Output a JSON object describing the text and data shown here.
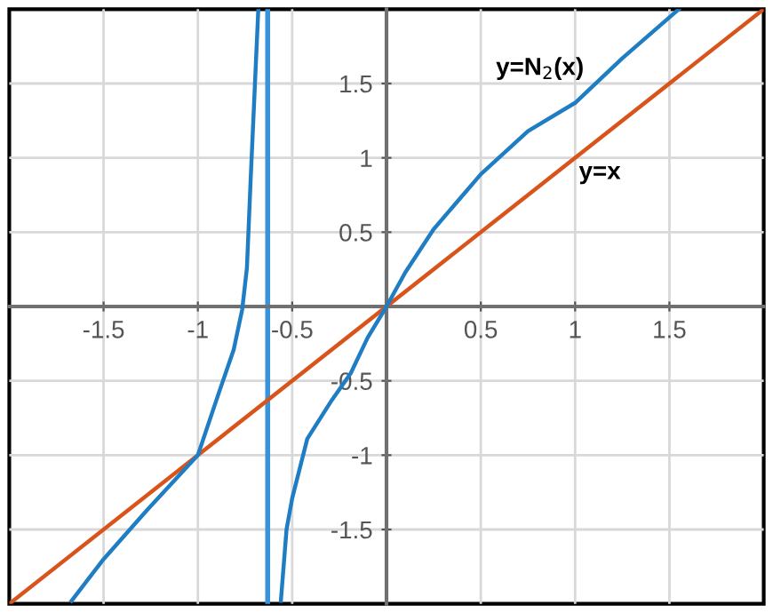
{
  "chart_data": {
    "type": "line",
    "xlim": [
      -2,
      2
    ],
    "ylim": [
      -2,
      2
    ],
    "xticks": [
      -1.5,
      -1,
      -0.5,
      0.5,
      1,
      1.5
    ],
    "yticks": [
      -1.5,
      -1,
      -0.5,
      0.5,
      1,
      1.5
    ],
    "grid": true,
    "legend": false,
    "marker": "none",
    "line_style": "solid",
    "series": [
      {
        "name": "y=N$_{2}$(x)",
        "color": "#1f7dc4",
        "x": [
          -1.67,
          -1.5,
          -1.27,
          -1,
          -0.886,
          -0.81,
          -0.765,
          -0.74,
          -0.72,
          -0.68,
          -0.62,
          -0.56,
          -0.53,
          -0.5,
          -0.42,
          -0.29,
          -0.19,
          -0.1,
          0,
          0.1,
          0.25,
          0.5,
          0.75,
          1,
          1.25,
          1.55
        ],
        "values": [
          -1.98,
          -1.7,
          -1.37,
          -1,
          -0.57,
          -0.29,
          -0.02,
          0.26,
          0.86,
          1.99,
          null,
          -1.98,
          -1.5,
          -1.29,
          -0.89,
          -0.63,
          -0.45,
          -0.21,
          0,
          0.23,
          0.52,
          0.89,
          1.18,
          1.37,
          1.67,
          2
        ]
      },
      {
        "name": "y=x",
        "color": "#d9541a",
        "x": [
          -2,
          2
        ],
        "values": [
          -2,
          2
        ]
      }
    ],
    "ref_lines": [
      {
        "axis": "x",
        "value": -0.63,
        "color": "#3a92d8"
      }
    ]
  }
}
